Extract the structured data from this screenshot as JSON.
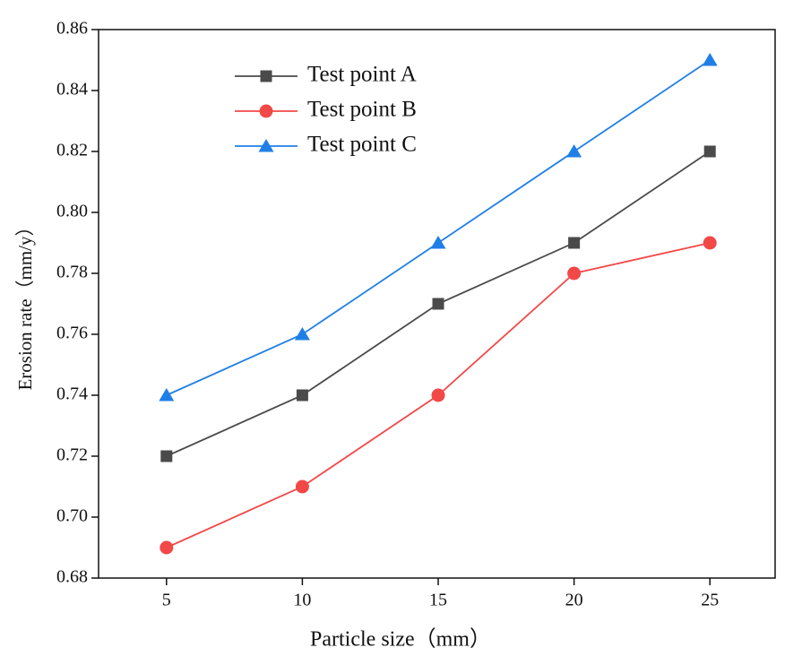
{
  "chart_data": {
    "type": "line",
    "xlabel": "Particle size（mm）",
    "ylabel": "Erosion rate（mm/y）",
    "x": [
      5,
      10,
      15,
      20,
      25
    ],
    "series": [
      {
        "name": "Test point A",
        "color": "#4a4a4a",
        "marker": "square",
        "values": [
          0.72,
          0.74,
          0.77,
          0.79,
          0.82
        ]
      },
      {
        "name": "Test point B",
        "color": "#f24848",
        "marker": "circle",
        "values": [
          0.69,
          0.71,
          0.74,
          0.78,
          0.79
        ]
      },
      {
        "name": "Test point C",
        "color": "#1f7fe6",
        "marker": "triangle",
        "values": [
          0.74,
          0.76,
          0.79,
          0.82,
          0.85
        ]
      }
    ],
    "xlim": [
      2.5,
      27.4
    ],
    "ylim": [
      0.68,
      0.86
    ],
    "xticks": [
      5,
      10,
      15,
      20,
      25
    ],
    "yticks": [
      0.68,
      {
        "value": 0.7,
        "label": "0.70"
      },
      0.72,
      0.74,
      0.76,
      0.78,
      {
        "value": 0.8,
        "label": "0.80"
      },
      0.82,
      0.84,
      0.86
    ],
    "legend": "upper-left"
  }
}
